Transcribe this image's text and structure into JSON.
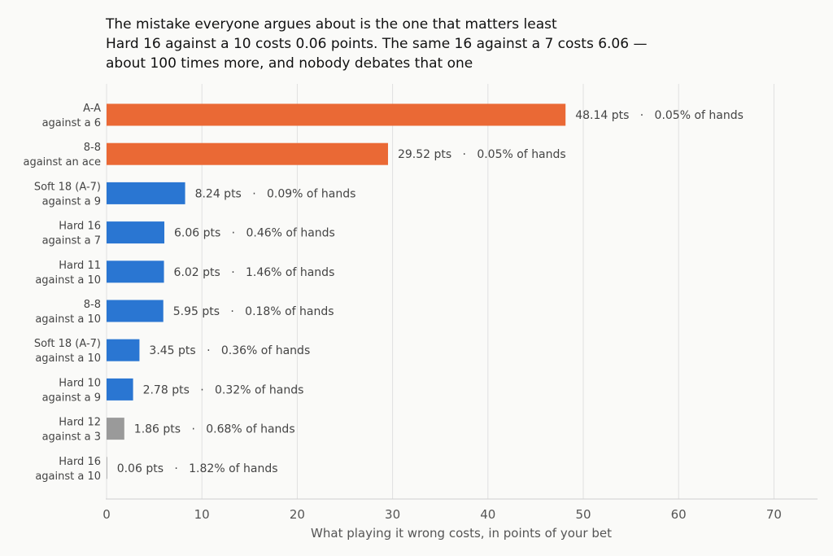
{
  "chart_data": {
    "type": "bar",
    "orientation": "horizontal",
    "title": [
      "The mistake everyone argues about is the one that matters least",
      "Hard 16 against a 10 costs 0.06 points. The same 16 against a 7 costs 6.06 —",
      "about 100 times more, and nobody debates that one"
    ],
    "xlabel": "What playing it wrong costs, in points of your bet",
    "ylabel": "",
    "xlim": [
      0,
      75
    ],
    "xticks": [
      0,
      10,
      20,
      30,
      40,
      50,
      60,
      70
    ],
    "grid": "vertical",
    "categories": [
      [
        "A-A",
        "against a 6"
      ],
      [
        "8-8",
        "against an ace"
      ],
      [
        "Soft 18 (A-7)",
        "against a 9"
      ],
      [
        "Hard 16",
        "against a 7"
      ],
      [
        "Hard 11",
        "against a 10"
      ],
      [
        "8-8",
        "against a 10"
      ],
      [
        "Soft 18 (A-7)",
        "against a 10"
      ],
      [
        "Hard 10",
        "against a 9"
      ],
      [
        "Hard 12",
        "against a 3"
      ],
      [
        "Hard 16",
        "against a 10"
      ]
    ],
    "values": [
      48.14,
      29.52,
      8.24,
      6.06,
      6.02,
      5.95,
      3.45,
      2.78,
      1.86,
      0.06
    ],
    "value_labels": [
      "48.14 pts   ·   0.05% of hands",
      "29.52 pts   ·   0.05% of hands",
      "8.24 pts   ·   0.09% of hands",
      "6.06 pts   ·   0.46% of hands",
      "6.02 pts   ·   1.46% of hands",
      "5.95 pts   ·   0.18% of hands",
      "3.45 pts   ·   0.36% of hands",
      "2.78 pts   ·   0.32% of hands",
      "1.86 pts   ·   0.68% of hands",
      "0.06 pts   ·   1.82% of hands"
    ],
    "bar_colors": [
      "#ea6935",
      "#ea6935",
      "#2a76d2",
      "#2a76d2",
      "#2a76d2",
      "#2a76d2",
      "#2a76d2",
      "#2a76d2",
      "#9a9a9a",
      "#9a9a9a"
    ]
  }
}
